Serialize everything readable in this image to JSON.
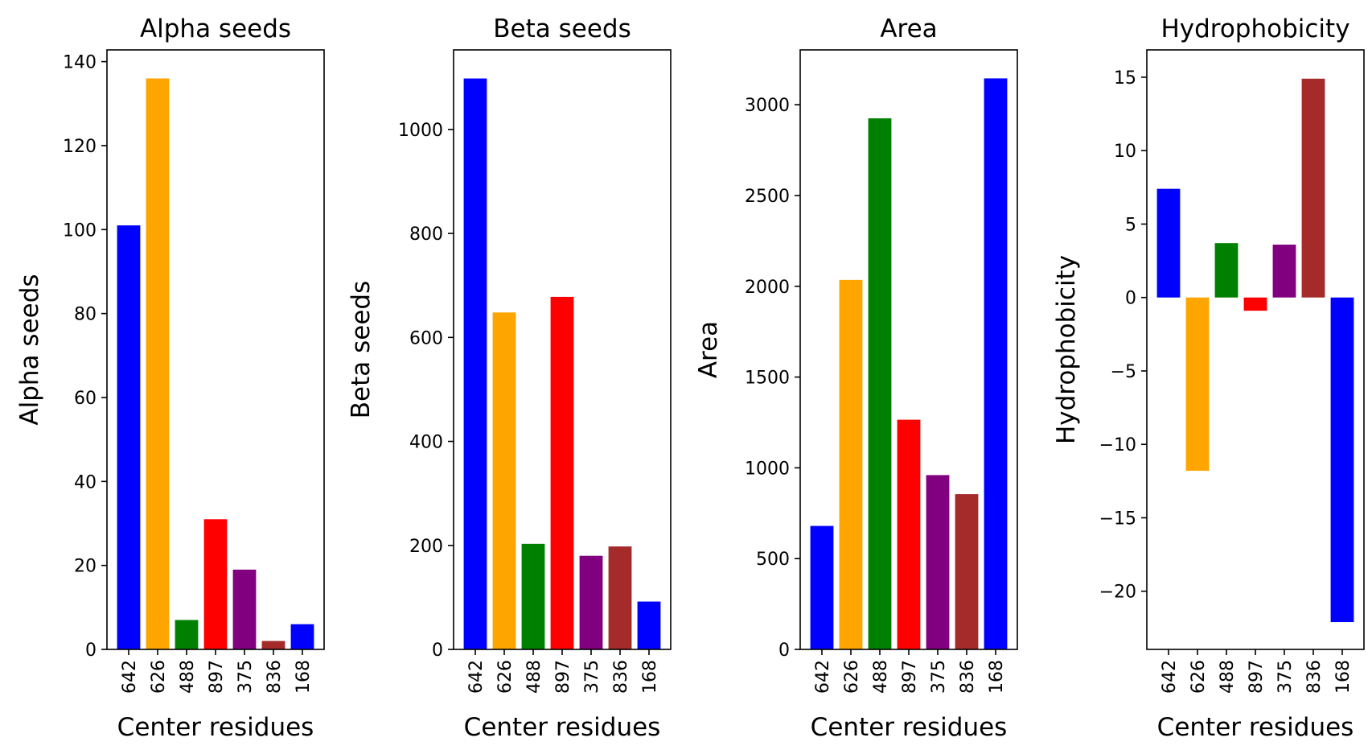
{
  "chart_data": [
    {
      "type": "bar",
      "title": "Alpha seeds",
      "xlabel": "Center residues",
      "ylabel": "Alpha seeds",
      "categories": [
        "642",
        "626",
        "488",
        "897",
        "375",
        "836",
        "168"
      ],
      "values": [
        101,
        136,
        7,
        31,
        19,
        2,
        6
      ],
      "colors": [
        "#0000ff",
        "#ffa500",
        "#008000",
        "#ff0000",
        "#800080",
        "#a52a2a",
        "#0000ff"
      ],
      "ylim": [
        0,
        142.8
      ],
      "yticks": [
        0,
        20,
        40,
        60,
        80,
        100,
        120,
        140
      ],
      "ytick_labels": [
        "0",
        "20",
        "40",
        "60",
        "80",
        "100",
        "120",
        "140"
      ]
    },
    {
      "type": "bar",
      "title": "Beta seeds",
      "xlabel": "Center residues",
      "ylabel": "Beta seeds",
      "categories": [
        "642",
        "626",
        "488",
        "897",
        "375",
        "836",
        "168"
      ],
      "values": [
        1098,
        648,
        203,
        678,
        180,
        198,
        92
      ],
      "colors": [
        "#0000ff",
        "#ffa500",
        "#008000",
        "#ff0000",
        "#800080",
        "#a52a2a",
        "#0000ff"
      ],
      "ylim": [
        0,
        1153
      ],
      "yticks": [
        0,
        200,
        400,
        600,
        800,
        1000
      ],
      "ytick_labels": [
        "0",
        "200",
        "400",
        "600",
        "800",
        "1000"
      ]
    },
    {
      "type": "bar",
      "title": "Area",
      "xlabel": "Center residues",
      "ylabel": "Area",
      "categories": [
        "642",
        "626",
        "488",
        "897",
        "375",
        "836",
        "168"
      ],
      "values": [
        680,
        2035,
        2925,
        1265,
        960,
        855,
        3145
      ],
      "colors": [
        "#0000ff",
        "#ffa500",
        "#008000",
        "#ff0000",
        "#800080",
        "#a52a2a",
        "#0000ff"
      ],
      "ylim": [
        0,
        3302
      ],
      "yticks": [
        0,
        500,
        1000,
        1500,
        2000,
        2500,
        3000
      ],
      "ytick_labels": [
        "0",
        "500",
        "1000",
        "1500",
        "2000",
        "2500",
        "3000"
      ]
    },
    {
      "type": "bar",
      "title": "Hydrophobicity",
      "xlabel": "Center residues",
      "ylabel": "Hydrophobicity",
      "categories": [
        "642",
        "626",
        "488",
        "897",
        "375",
        "836",
        "168"
      ],
      "values": [
        7.4,
        -11.8,
        3.7,
        -0.9,
        3.6,
        14.9,
        -22.1
      ],
      "colors": [
        "#0000ff",
        "#ffa500",
        "#008000",
        "#ff0000",
        "#800080",
        "#a52a2a",
        "#0000ff"
      ],
      "ylim": [
        -23.96,
        16.86
      ],
      "yticks": [
        -20,
        -15,
        -10,
        -5,
        0,
        5,
        10,
        15
      ],
      "ytick_labels": [
        "−20",
        "−15",
        "−10",
        "−5",
        "0",
        "5",
        "10",
        "15"
      ]
    }
  ]
}
